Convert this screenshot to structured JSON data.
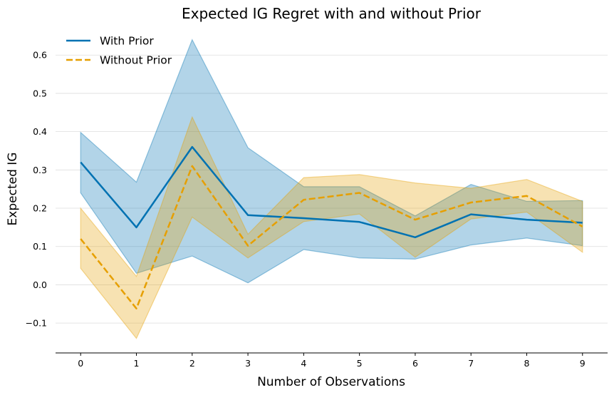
{
  "chart_data": {
    "type": "line",
    "title": "Expected IG Regret with and without Prior",
    "xlabel": "Number of Observations",
    "ylabel": "Expected IG",
    "x": [
      0,
      1,
      2,
      3,
      4,
      5,
      6,
      7,
      8,
      9
    ],
    "xlim": [
      -0.45,
      9.45
    ],
    "ylim": [
      -0.178,
      0.66
    ],
    "yticks": [
      -0.1,
      0.0,
      0.1,
      0.2,
      0.3,
      0.4,
      0.5,
      0.6
    ],
    "ytick_labels": [
      "−0.1",
      "0.0",
      "0.1",
      "0.2",
      "0.3",
      "0.4",
      "0.5",
      "0.6"
    ],
    "xtick_labels": [
      "0",
      "1",
      "2",
      "3",
      "4",
      "5",
      "6",
      "7",
      "8",
      "9"
    ],
    "grid": "horizontal",
    "legend_position": "top-left",
    "series": [
      {
        "name": "With Prior",
        "color": "#0072b2",
        "linestyle": "solid",
        "values": [
          0.32,
          0.15,
          0.36,
          0.182,
          0.174,
          0.164,
          0.124,
          0.184,
          0.17,
          0.162
        ],
        "lower": [
          0.24,
          0.03,
          0.075,
          0.005,
          0.092,
          0.07,
          0.067,
          0.104,
          0.122,
          0.102
        ],
        "upper": [
          0.398,
          0.268,
          0.64,
          0.358,
          0.256,
          0.256,
          0.18,
          0.262,
          0.218,
          0.22
        ]
      },
      {
        "name": "Without Prior",
        "color": "#e69f00",
        "linestyle": "dashed",
        "values": [
          0.12,
          -0.062,
          0.31,
          0.102,
          0.222,
          0.24,
          0.17,
          0.215,
          0.232,
          0.152
        ],
        "lower": [
          0.043,
          -0.14,
          0.177,
          0.07,
          0.165,
          0.185,
          0.072,
          0.172,
          0.19,
          0.085
        ],
        "upper": [
          0.2,
          0.022,
          0.438,
          0.132,
          0.28,
          0.288,
          0.266,
          0.252,
          0.275,
          0.218
        ]
      }
    ]
  }
}
